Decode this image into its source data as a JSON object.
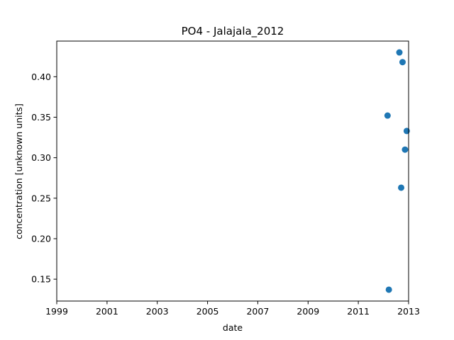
{
  "chart_data": {
    "type": "scatter",
    "title": "PO4 - Jalajala_2012",
    "xlabel": "date",
    "ylabel": "concentration [unknown units]",
    "x_scale": "date",
    "xlim": [
      "1999-01-01",
      "2013-01-01"
    ],
    "ylim": [
      0.123,
      0.444
    ],
    "x_ticks": [
      "1999",
      "2001",
      "2003",
      "2005",
      "2007",
      "2009",
      "2011",
      "2013"
    ],
    "y_ticks": [
      "0.15",
      "0.20",
      "0.25",
      "0.30",
      "0.35",
      "0.40"
    ],
    "grid": false,
    "legend": "none",
    "series": [
      {
        "color": "#1f77b4",
        "points": [
          {
            "x": "2012-03-01",
            "y": 0.352
          },
          {
            "x": "2012-03-20",
            "y": 0.137
          },
          {
            "x": "2012-08-20",
            "y": 0.43
          },
          {
            "x": "2012-09-15",
            "y": 0.263
          },
          {
            "x": "2012-10-05",
            "y": 0.418
          },
          {
            "x": "2012-11-10",
            "y": 0.31
          },
          {
            "x": "2012-12-05",
            "y": 0.333
          }
        ]
      }
    ]
  }
}
